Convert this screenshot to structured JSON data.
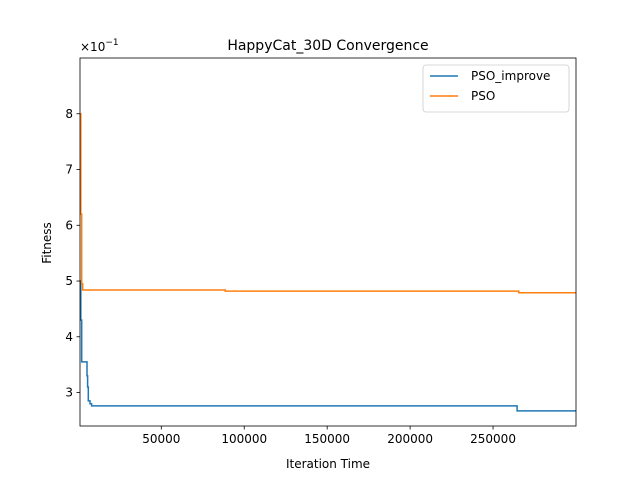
{
  "chart_data": {
    "type": "line",
    "title": "HappyCat_30D Convergence",
    "xlabel": "Iteration Time",
    "ylabel": "Fitness",
    "y_offset_text": "×10",
    "y_offset_exponent": "−1",
    "xlim": [
      1000,
      300000
    ],
    "ylim": [
      2.4,
      9.0
    ],
    "x_ticks": [
      50000,
      100000,
      150000,
      200000,
      250000
    ],
    "x_tick_labels": [
      "50000",
      "100000",
      "150000",
      "200000",
      "250000"
    ],
    "y_ticks": [
      3,
      4,
      5,
      6,
      7,
      8
    ],
    "y_tick_labels": [
      "3",
      "4",
      "5",
      "6",
      "7",
      "8"
    ],
    "grid": false,
    "legend_position": "top-right",
    "series": [
      {
        "name": "PSO_improve",
        "color": "#1f77b4",
        "step": true,
        "points": [
          [
            1000,
            5.0
          ],
          [
            1500,
            4.3
          ],
          [
            2000,
            3.55
          ],
          [
            5000,
            3.55
          ],
          [
            5200,
            3.3
          ],
          [
            5600,
            3.1
          ],
          [
            6000,
            2.85
          ],
          [
            7000,
            2.8
          ],
          [
            8000,
            2.76
          ],
          [
            264000,
            2.76
          ],
          [
            264500,
            2.67
          ],
          [
            300000,
            2.67
          ]
        ]
      },
      {
        "name": "PSO",
        "color": "#ff7f0e",
        "step": true,
        "points": [
          [
            1000,
            8.0
          ],
          [
            1500,
            6.2
          ],
          [
            2000,
            4.95
          ],
          [
            2600,
            4.84
          ],
          [
            88000,
            4.84
          ],
          [
            88500,
            4.82
          ],
          [
            265000,
            4.82
          ],
          [
            265500,
            4.79
          ],
          [
            300000,
            4.79
          ]
        ]
      }
    ]
  }
}
